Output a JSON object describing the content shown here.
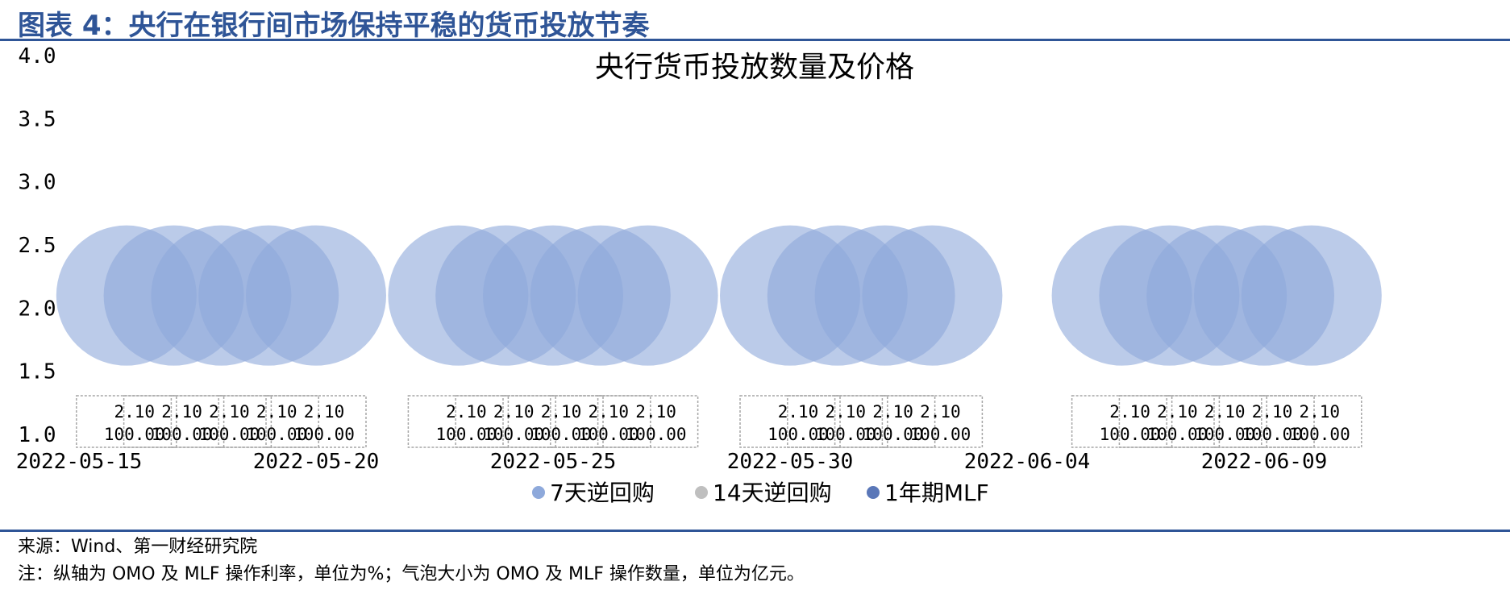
{
  "header": {
    "title": "图表 4：央行在银行间市场保持平稳的货币投放节奏"
  },
  "footer": {
    "source": "来源：Wind、第一财经研究院",
    "note": "注：纵轴为 OMO 及 MLF 操作利率，单位为%；气泡大小为 OMO 及 MLF 操作数量，单位为亿元。"
  },
  "colors": {
    "brand": "#2f5597",
    "series_7d": "#8ea9db",
    "series_14d": "#bfbfbf",
    "series_mlf": "#5a77b8"
  },
  "chart_data": {
    "type": "bubble",
    "title": "央行货币投放数量及价格",
    "ylim": [
      1.0,
      4.0
    ],
    "yticks": [
      "4.0",
      "3.5",
      "3.0",
      "2.5",
      "2.0",
      "1.5",
      "1.0"
    ],
    "xticks": [
      "2022-05-15",
      "2022-05-20",
      "2022-05-25",
      "2022-05-30",
      "2022-06-04",
      "2022-06-09"
    ],
    "legend_position": "bottom",
    "series": [
      {
        "name": "7天逆回购",
        "color": "#8ea9db",
        "points": [
          {
            "date": "2022-05-16",
            "rate": 2.1,
            "amount": 100.0
          },
          {
            "date": "2022-05-17",
            "rate": 2.1,
            "amount": 100.0
          },
          {
            "date": "2022-05-18",
            "rate": 2.1,
            "amount": 100.0
          },
          {
            "date": "2022-05-19",
            "rate": 2.1,
            "amount": 100.0
          },
          {
            "date": "2022-05-20",
            "rate": 2.1,
            "amount": 100.0
          },
          {
            "date": "2022-05-23",
            "rate": 2.1,
            "amount": 100.0
          },
          {
            "date": "2022-05-24",
            "rate": 2.1,
            "amount": 100.0
          },
          {
            "date": "2022-05-25",
            "rate": 2.1,
            "amount": 100.0
          },
          {
            "date": "2022-05-26",
            "rate": 2.1,
            "amount": 100.0
          },
          {
            "date": "2022-05-27",
            "rate": 2.1,
            "amount": 100.0
          },
          {
            "date": "2022-05-30",
            "rate": 2.1,
            "amount": 100.0
          },
          {
            "date": "2022-05-31",
            "rate": 2.1,
            "amount": 100.0
          },
          {
            "date": "2022-06-01",
            "rate": 2.1,
            "amount": 100.0
          },
          {
            "date": "2022-06-02",
            "rate": 2.1,
            "amount": 100.0
          },
          {
            "date": "2022-06-06",
            "rate": 2.1,
            "amount": 100.0
          },
          {
            "date": "2022-06-07",
            "rate": 2.1,
            "amount": 100.0
          },
          {
            "date": "2022-06-08",
            "rate": 2.1,
            "amount": 100.0
          },
          {
            "date": "2022-06-09",
            "rate": 2.1,
            "amount": 100.0
          },
          {
            "date": "2022-06-10",
            "rate": 2.1,
            "amount": 100.0
          }
        ]
      },
      {
        "name": "14天逆回购",
        "color": "#bfbfbf",
        "points": []
      },
      {
        "name": "1年期MLF",
        "color": "#5a77b8",
        "points": []
      }
    ]
  }
}
